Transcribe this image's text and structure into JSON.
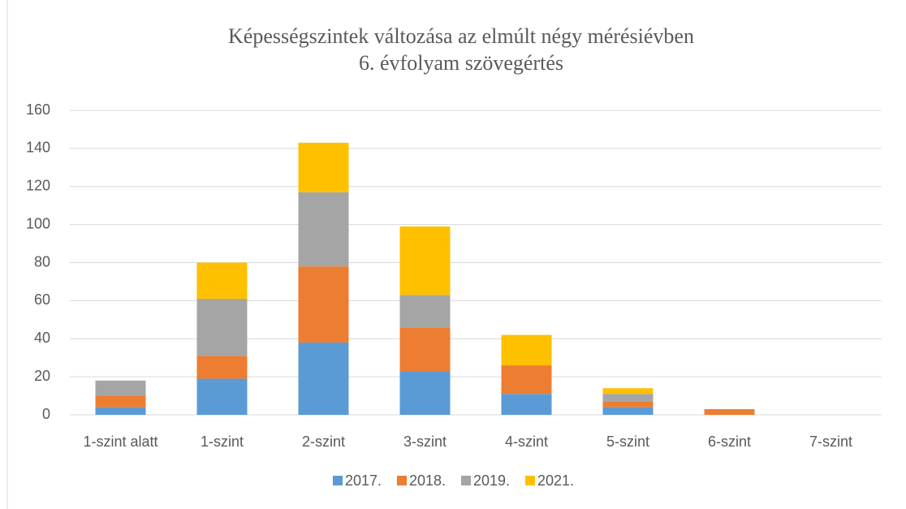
{
  "chart_data": {
    "type": "stacked_bar",
    "title": [
      "Képességszintek változása az elmúlt négy mérésiévben",
      "6. évfolyam szövegértés"
    ],
    "categories": [
      "1-szint alatt",
      "1-szint",
      "2-szint",
      "3-szint",
      "4-szint",
      "5-szint",
      "6-szint",
      "7-szint"
    ],
    "series": [
      {
        "name": "2017.",
        "color": "#5b9bd5",
        "values": [
          4,
          19,
          38,
          23,
          11,
          4,
          0,
          0
        ]
      },
      {
        "name": "2018.",
        "color": "#ed7d31",
        "values": [
          6,
          12,
          40,
          23,
          15,
          3,
          3,
          0
        ]
      },
      {
        "name": "2019.",
        "color": "#a5a5a5",
        "values": [
          8,
          30,
          39,
          17,
          0,
          4,
          0,
          0
        ]
      },
      {
        "name": "2021.",
        "color": "#ffc000",
        "values": [
          0,
          19,
          26,
          36,
          16,
          3,
          0,
          0
        ]
      }
    ],
    "ylim": [
      0,
      160
    ],
    "yticks": [
      0,
      20,
      40,
      60,
      80,
      100,
      120,
      140,
      160
    ],
    "grid": true,
    "legend": "bottom"
  }
}
